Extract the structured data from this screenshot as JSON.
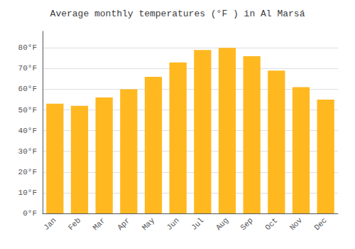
{
  "chart_data": {
    "type": "bar",
    "title": "Average monthly temperatures (°F ) in Al Marsá",
    "categories": [
      "Jan",
      "Feb",
      "Mar",
      "Apr",
      "May",
      "Jun",
      "Jul",
      "Aug",
      "Sep",
      "Oct",
      "Nov",
      "Dec"
    ],
    "values": [
      53,
      52,
      56,
      60,
      66,
      73,
      79,
      80,
      76,
      69,
      61,
      55
    ],
    "color": "#FFB820",
    "ylim": [
      0,
      88
    ],
    "yticks": [
      {
        "value": 0,
        "label": "0°F"
      },
      {
        "value": 10,
        "label": "10°F"
      },
      {
        "value": 20,
        "label": "20°F"
      },
      {
        "value": 30,
        "label": "30°F"
      },
      {
        "value": 40,
        "label": "40°F"
      },
      {
        "value": 50,
        "label": "50°F"
      },
      {
        "value": 60,
        "label": "60°F"
      },
      {
        "value": 70,
        "label": "70°F"
      },
      {
        "value": 80,
        "label": "80°F"
      }
    ],
    "grid": true
  }
}
